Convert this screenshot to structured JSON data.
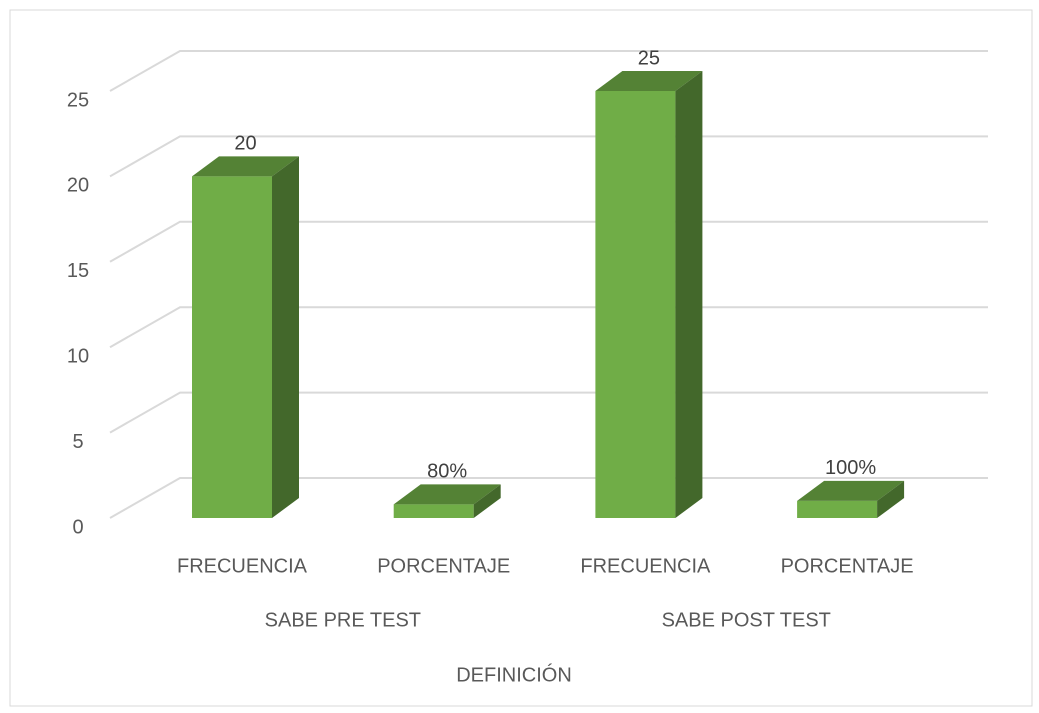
{
  "chart_data": {
    "type": "bar3d",
    "categories": [
      "FRECUENCIA",
      "PORCENTAJE",
      "FRECUENCIA",
      "PORCENTAJE"
    ],
    "groups": [
      {
        "name": "SABE PRE TEST",
        "span": [
          0,
          1
        ]
      },
      {
        "name": "SABE POST TEST",
        "span": [
          2,
          3
        ]
      }
    ],
    "values": [
      20,
      0.8,
      25,
      1
    ],
    "value_labels": [
      "20",
      "80%",
      "25",
      "100%"
    ],
    "color": "#70ad47",
    "x_label": "DEFINICIÓN",
    "ylim": [
      0,
      25
    ],
    "yticks": [
      0,
      5,
      10,
      15,
      20,
      25
    ],
    "grid": true
  }
}
